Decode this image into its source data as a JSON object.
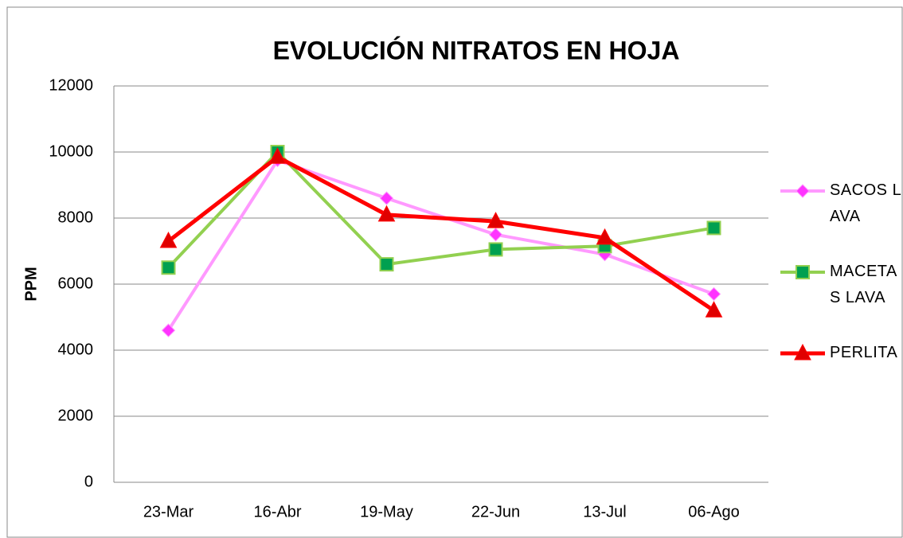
{
  "chart_data": {
    "type": "line",
    "title": "EVOLUCIÓN NITRATOS EN HOJA",
    "y_label": "PPM",
    "categories": [
      "23-Mar",
      "16-Abr",
      "19-May",
      "22-Jun",
      "13-Jul",
      "06-Ago"
    ],
    "series": [
      {
        "name": "SACOS LAVA",
        "color": "#ff99ff",
        "marker": "diamond",
        "values": [
          4600,
          9750,
          8600,
          7500,
          6900,
          5700
        ]
      },
      {
        "name": "MACETAS LAVA",
        "color": "#92d050",
        "marker": "square",
        "values": [
          6500,
          10000,
          6600,
          7050,
          7150,
          7700
        ]
      },
      {
        "name": "PERLITA",
        "color": "#ff0000",
        "marker": "triangle",
        "values": [
          7300,
          9850,
          8100,
          7900,
          7400,
          5200
        ]
      }
    ],
    "ylim": [
      0,
      12000
    ],
    "yticks": [
      0,
      2000,
      4000,
      6000,
      8000,
      10000,
      12000
    ],
    "grid": true,
    "legend": "right"
  }
}
